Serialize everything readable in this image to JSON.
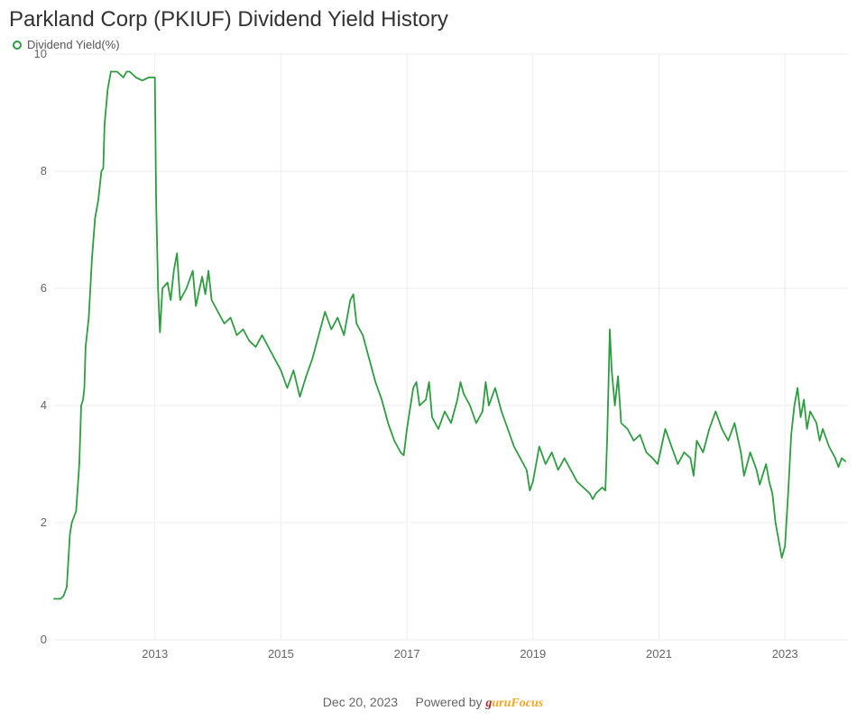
{
  "title": "Parkland Corp (PKIUF) Dividend Yield History",
  "legend_label": "Dividend Yield(%)",
  "footer_date": "Dec 20, 2023",
  "footer_text": "Powered by ",
  "footer_brand_g": "g",
  "footer_brand_rest": "uruFocus",
  "chart": {
    "type": "line",
    "background_color": "#ffffff",
    "line_color": "#2e9c41",
    "line_width": 1.8,
    "grid_color": "#eeeeee",
    "grid_width": 1,
    "axis_tick_color": "#666666",
    "axis_label_color": "#666666",
    "tick_fontsize": 13,
    "x": {
      "min": 2011.4,
      "max": 2024.0,
      "ticks": [
        2013,
        2015,
        2017,
        2019,
        2021,
        2023
      ]
    },
    "y": {
      "min": 0,
      "max": 10,
      "ticks": [
        0,
        2,
        4,
        6,
        8,
        10
      ]
    },
    "series": [
      [
        2011.4,
        0.7
      ],
      [
        2011.5,
        0.7
      ],
      [
        2011.55,
        0.75
      ],
      [
        2011.6,
        0.9
      ],
      [
        2011.65,
        1.8
      ],
      [
        2011.68,
        2.0
      ],
      [
        2011.75,
        2.2
      ],
      [
        2011.8,
        3.0
      ],
      [
        2011.83,
        4.0
      ],
      [
        2011.86,
        4.1
      ],
      [
        2011.88,
        4.3
      ],
      [
        2011.9,
        5.0
      ],
      [
        2011.95,
        5.5
      ],
      [
        2012.0,
        6.5
      ],
      [
        2012.05,
        7.2
      ],
      [
        2012.1,
        7.5
      ],
      [
        2012.15,
        8.0
      ],
      [
        2012.18,
        8.05
      ],
      [
        2012.2,
        8.8
      ],
      [
        2012.25,
        9.4
      ],
      [
        2012.3,
        9.7
      ],
      [
        2012.4,
        9.7
      ],
      [
        2012.5,
        9.6
      ],
      [
        2012.55,
        9.7
      ],
      [
        2012.6,
        9.7
      ],
      [
        2012.7,
        9.6
      ],
      [
        2012.8,
        9.55
      ],
      [
        2012.9,
        9.6
      ],
      [
        2012.98,
        9.6
      ],
      [
        2013.0,
        9.6
      ],
      [
        2013.02,
        7.5
      ],
      [
        2013.05,
        6.0
      ],
      [
        2013.08,
        5.25
      ],
      [
        2013.12,
        6.0
      ],
      [
        2013.2,
        6.1
      ],
      [
        2013.25,
        5.8
      ],
      [
        2013.3,
        6.3
      ],
      [
        2013.35,
        6.6
      ],
      [
        2013.4,
        5.8
      ],
      [
        2013.5,
        6.0
      ],
      [
        2013.6,
        6.3
      ],
      [
        2013.65,
        5.7
      ],
      [
        2013.75,
        6.2
      ],
      [
        2013.8,
        5.9
      ],
      [
        2013.85,
        6.3
      ],
      [
        2013.9,
        5.8
      ],
      [
        2014.0,
        5.6
      ],
      [
        2014.1,
        5.4
      ],
      [
        2014.2,
        5.5
      ],
      [
        2014.3,
        5.2
      ],
      [
        2014.4,
        5.3
      ],
      [
        2014.5,
        5.1
      ],
      [
        2014.6,
        5.0
      ],
      [
        2014.7,
        5.2
      ],
      [
        2014.8,
        5.0
      ],
      [
        2014.9,
        4.8
      ],
      [
        2015.0,
        4.6
      ],
      [
        2015.1,
        4.3
      ],
      [
        2015.2,
        4.6
      ],
      [
        2015.3,
        4.15
      ],
      [
        2015.4,
        4.5
      ],
      [
        2015.5,
        4.8
      ],
      [
        2015.6,
        5.2
      ],
      [
        2015.7,
        5.6
      ],
      [
        2015.8,
        5.3
      ],
      [
        2015.9,
        5.5
      ],
      [
        2016.0,
        5.2
      ],
      [
        2016.1,
        5.8
      ],
      [
        2016.15,
        5.9
      ],
      [
        2016.2,
        5.4
      ],
      [
        2016.3,
        5.2
      ],
      [
        2016.4,
        4.8
      ],
      [
        2016.5,
        4.4
      ],
      [
        2016.6,
        4.1
      ],
      [
        2016.7,
        3.7
      ],
      [
        2016.8,
        3.4
      ],
      [
        2016.9,
        3.2
      ],
      [
        2016.95,
        3.15
      ],
      [
        2017.0,
        3.6
      ],
      [
        2017.1,
        4.3
      ],
      [
        2017.15,
        4.4
      ],
      [
        2017.2,
        4.0
      ],
      [
        2017.3,
        4.1
      ],
      [
        2017.35,
        4.4
      ],
      [
        2017.4,
        3.8
      ],
      [
        2017.5,
        3.6
      ],
      [
        2017.6,
        3.9
      ],
      [
        2017.7,
        3.7
      ],
      [
        2017.8,
        4.1
      ],
      [
        2017.85,
        4.4
      ],
      [
        2017.9,
        4.2
      ],
      [
        2018.0,
        4.0
      ],
      [
        2018.1,
        3.7
      ],
      [
        2018.2,
        3.9
      ],
      [
        2018.25,
        4.4
      ],
      [
        2018.3,
        4.0
      ],
      [
        2018.4,
        4.3
      ],
      [
        2018.5,
        3.9
      ],
      [
        2018.6,
        3.6
      ],
      [
        2018.7,
        3.3
      ],
      [
        2018.8,
        3.1
      ],
      [
        2018.9,
        2.9
      ],
      [
        2018.95,
        2.55
      ],
      [
        2019.0,
        2.7
      ],
      [
        2019.1,
        3.3
      ],
      [
        2019.2,
        3.0
      ],
      [
        2019.3,
        3.2
      ],
      [
        2019.4,
        2.9
      ],
      [
        2019.5,
        3.1
      ],
      [
        2019.6,
        2.9
      ],
      [
        2019.7,
        2.7
      ],
      [
        2019.8,
        2.6
      ],
      [
        2019.9,
        2.5
      ],
      [
        2019.95,
        2.4
      ],
      [
        2020.0,
        2.5
      ],
      [
        2020.1,
        2.6
      ],
      [
        2020.15,
        2.55
      ],
      [
        2020.18,
        3.5
      ],
      [
        2020.22,
        5.3
      ],
      [
        2020.25,
        4.6
      ],
      [
        2020.3,
        4.0
      ],
      [
        2020.35,
        4.5
      ],
      [
        2020.4,
        3.7
      ],
      [
        2020.5,
        3.6
      ],
      [
        2020.6,
        3.4
      ],
      [
        2020.7,
        3.5
      ],
      [
        2020.8,
        3.2
      ],
      [
        2020.9,
        3.1
      ],
      [
        2020.98,
        3.0
      ],
      [
        2021.0,
        3.1
      ],
      [
        2021.1,
        3.6
      ],
      [
        2021.2,
        3.3
      ],
      [
        2021.3,
        3.0
      ],
      [
        2021.4,
        3.2
      ],
      [
        2021.5,
        3.1
      ],
      [
        2021.55,
        2.8
      ],
      [
        2021.6,
        3.4
      ],
      [
        2021.7,
        3.2
      ],
      [
        2021.8,
        3.6
      ],
      [
        2021.9,
        3.9
      ],
      [
        2022.0,
        3.6
      ],
      [
        2022.1,
        3.4
      ],
      [
        2022.2,
        3.7
      ],
      [
        2022.3,
        3.2
      ],
      [
        2022.35,
        2.8
      ],
      [
        2022.45,
        3.2
      ],
      [
        2022.55,
        2.9
      ],
      [
        2022.6,
        2.65
      ],
      [
        2022.7,
        3.0
      ],
      [
        2022.75,
        2.7
      ],
      [
        2022.8,
        2.5
      ],
      [
        2022.85,
        2.0
      ],
      [
        2022.9,
        1.7
      ],
      [
        2022.95,
        1.4
      ],
      [
        2023.0,
        1.6
      ],
      [
        2023.05,
        2.5
      ],
      [
        2023.1,
        3.5
      ],
      [
        2023.15,
        4.0
      ],
      [
        2023.2,
        4.3
      ],
      [
        2023.25,
        3.8
      ],
      [
        2023.3,
        4.1
      ],
      [
        2023.35,
        3.6
      ],
      [
        2023.4,
        3.9
      ],
      [
        2023.5,
        3.7
      ],
      [
        2023.55,
        3.4
      ],
      [
        2023.6,
        3.6
      ],
      [
        2023.7,
        3.3
      ],
      [
        2023.8,
        3.1
      ],
      [
        2023.85,
        2.95
      ],
      [
        2023.9,
        3.1
      ],
      [
        2023.96,
        3.05
      ]
    ]
  }
}
